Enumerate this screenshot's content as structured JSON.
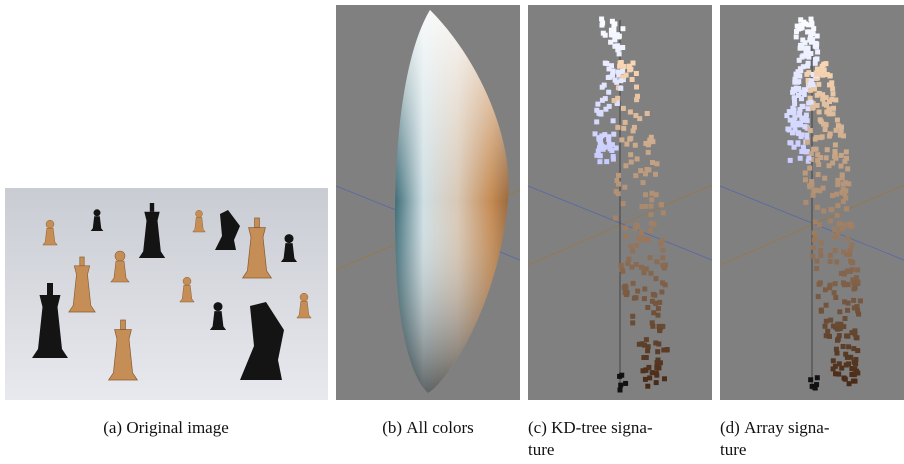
{
  "subfigures": [
    {
      "label": "(a)",
      "caption_lines": [
        "Original image"
      ]
    },
    {
      "label": "(b)",
      "caption_lines": [
        "All colors"
      ]
    },
    {
      "label": "(c)",
      "caption_lines": [
        "KD-tree signa-",
        "ture"
      ]
    },
    {
      "label": "(d)",
      "caption_lines": [
        "Array signa-",
        "ture"
      ]
    }
  ]
}
